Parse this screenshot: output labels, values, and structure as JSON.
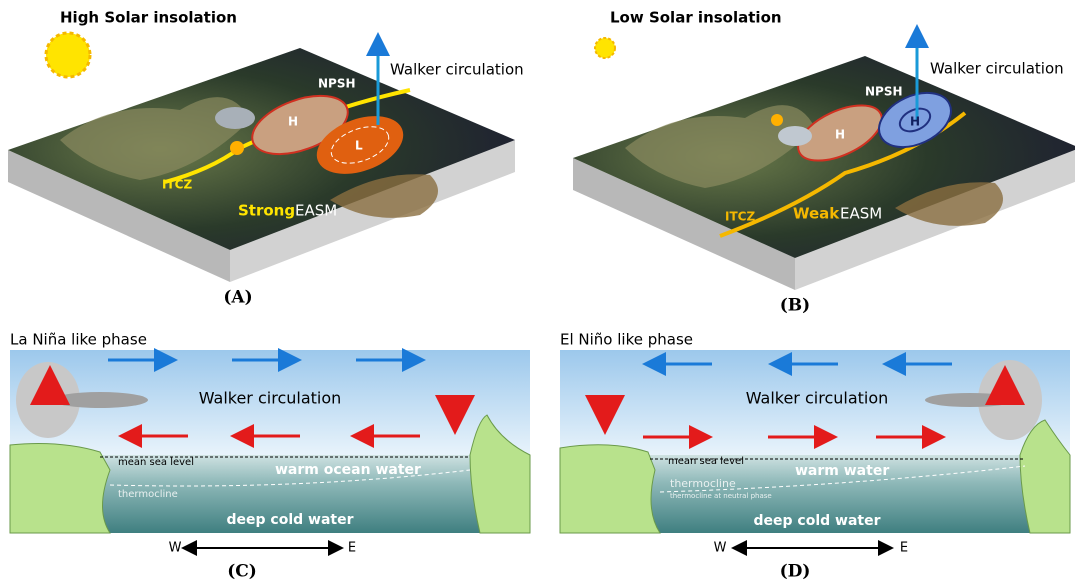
{
  "panels": [
    {
      "label": "(A)",
      "title": "High Solar insolation",
      "walker": "Walker circulation",
      "npsh": "NPSH",
      "systems": [
        "H",
        "L"
      ],
      "itcz": "ITCZ",
      "strength": "Strong",
      "monsoon": "EASM"
    },
    {
      "label": "(B)",
      "title": "Low Solar insolation",
      "walker": "Walker circulation",
      "npsh": "NPSH",
      "systems": [
        "H",
        "H"
      ],
      "itcz": "ITCZ",
      "strength": "Weak",
      "monsoon": "EASM"
    },
    {
      "label": "(C)",
      "title": "La Niña like phase",
      "walker": "Walker circulation",
      "sea_level": "mean sea level",
      "warm": "warm ocean water",
      "thermocline": "thermocline",
      "deep": "deep cold water",
      "west": "W",
      "east": "E"
    },
    {
      "label": "(D)",
      "title": "El Niño like phase",
      "walker": "Walker circulation",
      "sea_level": "mean sea level",
      "warm": "warm water",
      "thermocline": "thermocline",
      "thermocline_neutral": "thermocline at neutral phase",
      "deep": "deep cold water",
      "west": "W",
      "east": "E"
    }
  ]
}
